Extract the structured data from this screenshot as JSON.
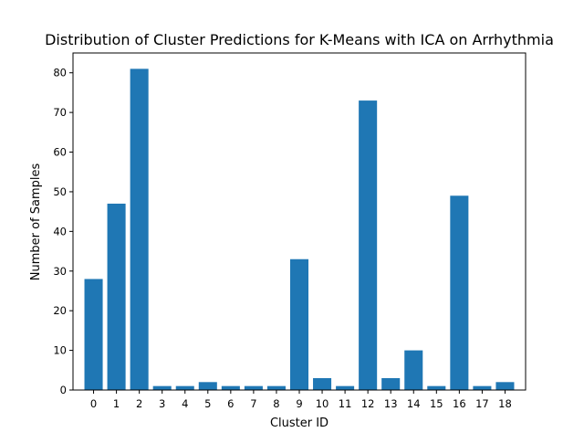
{
  "chart_data": {
    "type": "bar",
    "title": "Distribution of Cluster Predictions for K-Means with ICA on Arrhythmia",
    "xlabel": "Cluster ID",
    "ylabel": "Number of Samples",
    "categories": [
      "0",
      "1",
      "2",
      "3",
      "4",
      "5",
      "6",
      "7",
      "8",
      "9",
      "10",
      "11",
      "12",
      "13",
      "14",
      "15",
      "16",
      "17",
      "18"
    ],
    "values": [
      28,
      47,
      81,
      1,
      1,
      2,
      1,
      1,
      1,
      33,
      3,
      1,
      73,
      3,
      10,
      1,
      49,
      1,
      2
    ],
    "ylim": [
      0,
      85
    ],
    "yticks": [
      0,
      10,
      20,
      30,
      40,
      50,
      60,
      70,
      80
    ],
    "grid": false,
    "legend": "none",
    "bar_color": "#1f77b4"
  }
}
